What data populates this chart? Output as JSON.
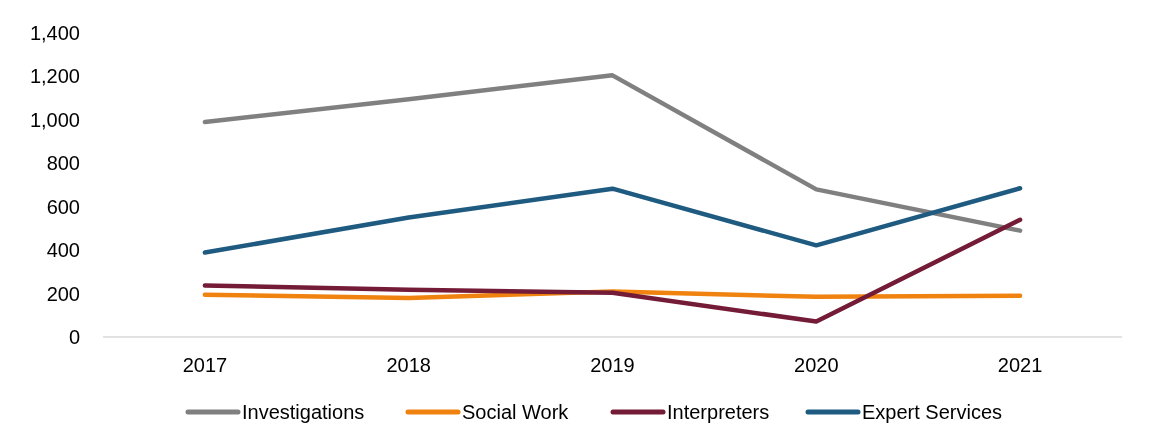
{
  "chart_data": {
    "type": "line",
    "categories": [
      "2017",
      "2018",
      "2019",
      "2020",
      "2021"
    ],
    "series": [
      {
        "name": "Investigations",
        "color": "#808080",
        "values": [
          990,
          1095,
          1205,
          680,
          490
        ]
      },
      {
        "name": "Social Work",
        "color": "#f0820f",
        "values": [
          195,
          180,
          210,
          185,
          190
        ]
      },
      {
        "name": "Interpreters",
        "color": "#741b37",
        "values": [
          237,
          218,
          204,
          71,
          540
        ]
      },
      {
        "name": "Expert Services",
        "color": "#1f5a80",
        "values": [
          389,
          550,
          683,
          422,
          685
        ]
      }
    ],
    "ylim": [
      0,
      1400
    ],
    "yticks": [
      {
        "value": 0,
        "label": "0"
      },
      {
        "value": 200,
        "label": "200"
      },
      {
        "value": 400,
        "label": "400"
      },
      {
        "value": 600,
        "label": "600"
      },
      {
        "value": 800,
        "label": "800"
      },
      {
        "value": 1000,
        "label": "1,000"
      },
      {
        "value": 1200,
        "label": "1,200"
      },
      {
        "value": 1400,
        "label": "1,400"
      }
    ],
    "grid": false,
    "legend": "bottom",
    "marker": "none",
    "line_style": "solid"
  }
}
